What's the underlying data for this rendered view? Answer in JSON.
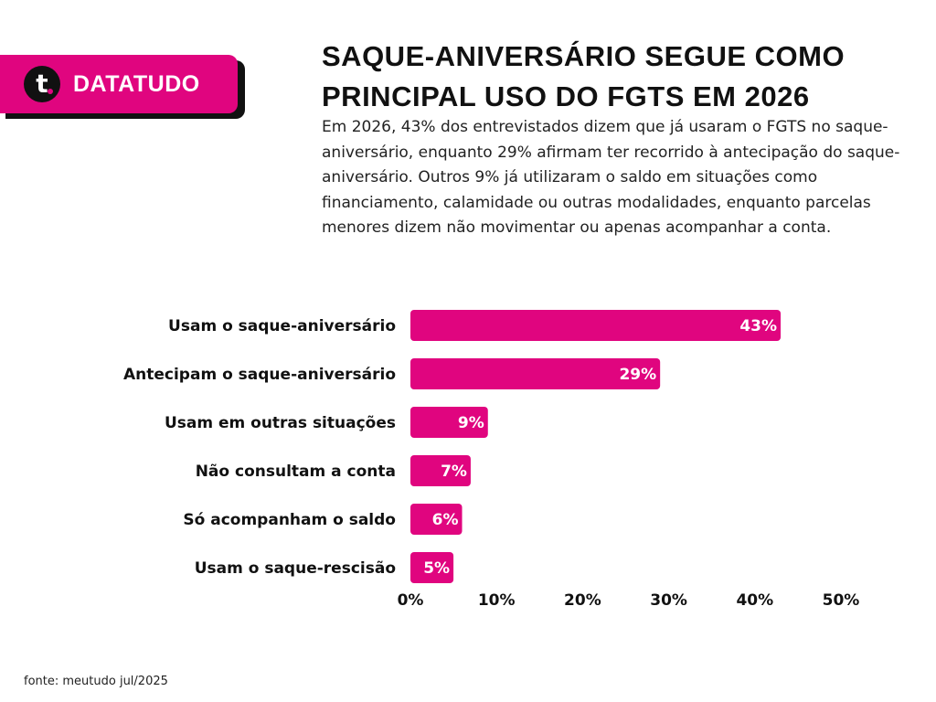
{
  "brand": {
    "logo_letter": "t",
    "name": "DATATUDO"
  },
  "colors": {
    "accent": "#e0057f",
    "dark": "#111111",
    "text": "#222222"
  },
  "header": {
    "title": "SAQUE-ANIVERSÁRIO SEGUE COMO PRINCIPAL USO DO FGTS EM 2026",
    "subtitle": "Em 2026, 43% dos entrevistados dizem que já usaram o FGTS no saque-aniversário, enquanto 29% afirmam ter recorrido à antecipação do saque-aniversário. Outros 9% já utilizaram o saldo em situações como financiamento, calamidade ou outras modalidades, enquanto parcelas menores dizem não movimentar ou apenas acompanhar a conta."
  },
  "chart_data": {
    "type": "bar",
    "orientation": "horizontal",
    "categories": [
      "Usam o saque-aniversário",
      "Antecipam o saque-aniversário",
      "Usam em outras situações",
      "Não consultam a conta",
      "Só acompanham o saldo",
      "Usam o saque-rescisão"
    ],
    "values": [
      43,
      29,
      9,
      7,
      6,
      5
    ],
    "value_labels": [
      "43%",
      "29%",
      "9%",
      "7%",
      "6%",
      "5%"
    ],
    "xlim": [
      0,
      50
    ],
    "xticks": [
      "0%",
      "10%",
      "20%",
      "30%",
      "40%",
      "50%"
    ],
    "grid": false,
    "bar_color": "#e0057f"
  },
  "footer": {
    "source": "fonte: meutudo jul/2025"
  }
}
